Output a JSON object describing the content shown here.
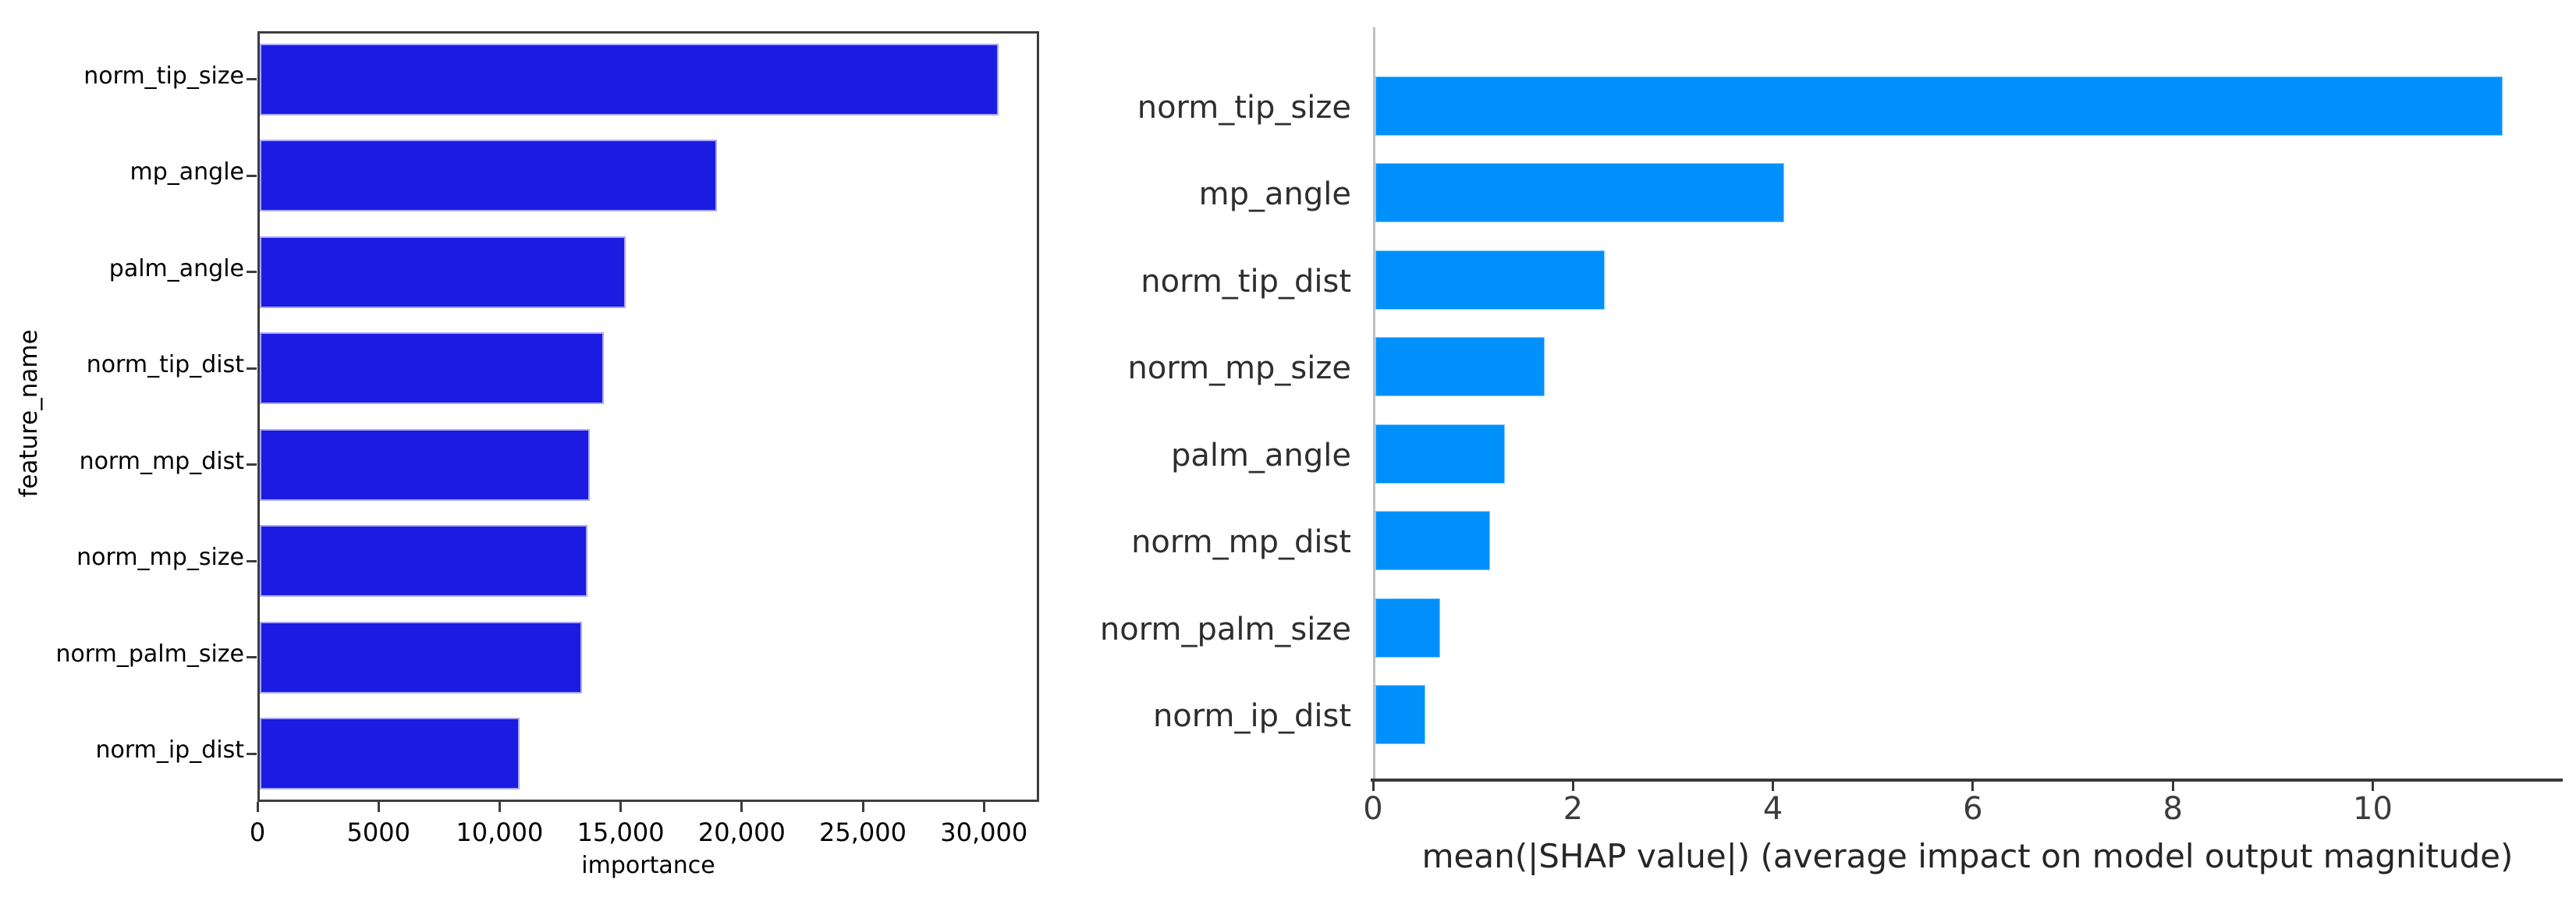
{
  "page": {
    "background": "#ffffff"
  },
  "chart_data": [
    {
      "id": "feature-importance",
      "type": "bar",
      "orientation": "horizontal",
      "title": "",
      "xlabel": "importance",
      "ylabel": "feature_name",
      "categories": [
        "norm_tip_size",
        "mp_angle",
        "palm_angle",
        "norm_tip_dist",
        "norm_mp_dist",
        "norm_mp_size",
        "norm_palm_size",
        "norm_ip_dist"
      ],
      "values": [
        30700,
        19000,
        15200,
        14300,
        13700,
        13600,
        13400,
        10800
      ],
      "xlim": [
        0,
        32280
      ],
      "xticks": [
        {
          "value": 0,
          "label": "0"
        },
        {
          "value": 5000,
          "label": "5000"
        },
        {
          "value": 10000,
          "label": "10,000"
        },
        {
          "value": 15000,
          "label": "15,000"
        },
        {
          "value": 20000,
          "label": "20,000"
        },
        {
          "value": 25000,
          "label": "25,000"
        },
        {
          "value": 30000,
          "label": "30,000"
        }
      ],
      "bar_color": "#1b1be2",
      "bar_edge_color": "#a9a9f7",
      "frame": "full-box",
      "grid": false,
      "legend": null
    },
    {
      "id": "shap-summary",
      "type": "bar",
      "orientation": "horizontal",
      "title": "",
      "xlabel": "mean(|SHAP value|) (average impact on model output magnitude)",
      "ylabel": "",
      "categories": [
        "norm_tip_size",
        "mp_angle",
        "norm_tip_dist",
        "norm_mp_size",
        "palm_angle",
        "norm_mp_dist",
        "norm_palm_size",
        "norm_ip_dist"
      ],
      "values": [
        11.3,
        4.1,
        2.3,
        1.7,
        1.3,
        1.15,
        0.65,
        0.5
      ],
      "xlim": [
        0,
        11.9
      ],
      "xticks": [
        {
          "value": 0,
          "label": "0"
        },
        {
          "value": 2,
          "label": "2"
        },
        {
          "value": 4,
          "label": "4"
        },
        {
          "value": 6,
          "label": "6"
        },
        {
          "value": 8,
          "label": "8"
        },
        {
          "value": 10,
          "label": "10"
        }
      ],
      "bar_color": "#0090fb",
      "bar_edge_color": "#7ecbff",
      "frame": "left-bottom-spines",
      "grid": false,
      "legend": null
    }
  ]
}
